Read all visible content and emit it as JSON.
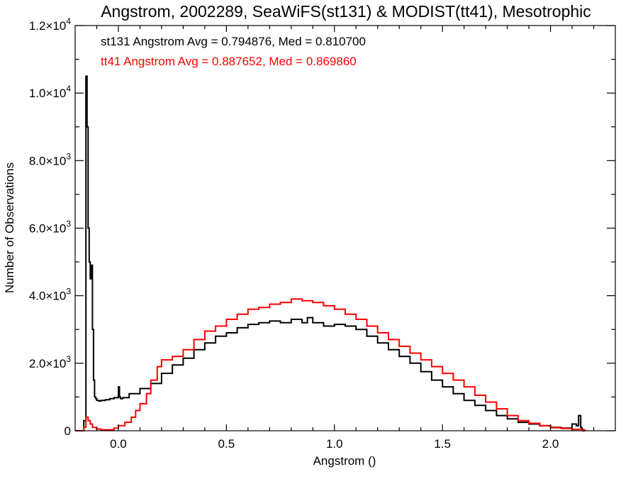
{
  "chart_data": {
    "type": "line",
    "title": "Angstrom, 2002289, SeaWiFS(st131) & MODIST(tt41), Mesotrophic",
    "xlabel": "Angstrom ()",
    "ylabel": "Number of Observations",
    "xlim": [
      -0.2,
      2.3
    ],
    "ylim": [
      0,
      12000
    ],
    "xticks": [
      0.0,
      0.5,
      1.0,
      1.5,
      2.0
    ],
    "xtick_labels": [
      "0.0",
      "0.5",
      "1.0",
      "1.5",
      "2.0"
    ],
    "yticks": [
      {
        "value": 0,
        "mantissa": "0",
        "exponent": ""
      },
      {
        "value": 2000,
        "mantissa": "2.0×10",
        "exponent": "3"
      },
      {
        "value": 4000,
        "mantissa": "4.0×10",
        "exponent": "3"
      },
      {
        "value": 6000,
        "mantissa": "6.0×10",
        "exponent": "3"
      },
      {
        "value": 8000,
        "mantissa": "8.0×10",
        "exponent": "3"
      },
      {
        "value": 10000,
        "mantissa": "1.0×10",
        "exponent": "4"
      },
      {
        "value": 12000,
        "mantissa": "1.2×10",
        "exponent": "4"
      }
    ],
    "grid": false,
    "stats": [
      {
        "text": "st131 Angstrom Avg = 0.794876, Med = 0.810700",
        "color": "#000000"
      },
      {
        "text": "tt41 Angstrom Avg = 0.887652, Med = 0.869860",
        "color": "#ff0000"
      }
    ],
    "series": [
      {
        "color": "#000000",
        "step": true,
        "x": [
          -0.2,
          -0.16,
          -0.15,
          -0.145,
          -0.14,
          -0.135,
          -0.13,
          -0.125,
          -0.12,
          -0.115,
          -0.11,
          -0.105,
          -0.1,
          -0.09,
          -0.08,
          -0.06,
          -0.04,
          -0.02,
          0.0,
          0.005,
          0.01,
          0.02,
          0.05,
          0.1,
          0.15,
          0.2,
          0.25,
          0.3,
          0.35,
          0.4,
          0.45,
          0.5,
          0.55,
          0.6,
          0.65,
          0.7,
          0.75,
          0.8,
          0.85,
          0.875,
          0.9,
          0.95,
          1.0,
          1.05,
          1.1,
          1.15,
          1.2,
          1.25,
          1.3,
          1.35,
          1.4,
          1.45,
          1.5,
          1.55,
          1.6,
          1.65,
          1.7,
          1.75,
          1.8,
          1.85,
          1.9,
          1.95,
          2.0,
          2.05,
          2.1,
          2.12,
          2.13,
          2.14,
          2.145,
          2.15,
          2.16
        ],
        "values": [
          0,
          300,
          10500,
          9000,
          6000,
          5000,
          4500,
          4900,
          3000,
          1500,
          1000,
          950,
          900,
          880,
          900,
          920,
          950,
          980,
          1300,
          1000,
          950,
          980,
          1100,
          1250,
          1400,
          1700,
          1950,
          2150,
          2400,
          2600,
          2800,
          2900,
          3050,
          3150,
          3200,
          3250,
          3200,
          3300,
          3200,
          3350,
          3200,
          3100,
          3150,
          3100,
          3000,
          2800,
          2600,
          2400,
          2200,
          2000,
          1750,
          1500,
          1300,
          1100,
          900,
          750,
          600,
          450,
          350,
          250,
          200,
          150,
          100,
          80,
          200,
          150,
          450,
          100,
          50,
          0,
          0
        ]
      },
      {
        "color": "#ff0000",
        "step": true,
        "x": [
          -0.2,
          -0.16,
          -0.15,
          -0.14,
          -0.13,
          -0.12,
          -0.1,
          -0.08,
          -0.05,
          -0.02,
          0.0,
          0.03,
          0.06,
          0.08,
          0.1,
          0.13,
          0.15,
          0.18,
          0.2,
          0.25,
          0.3,
          0.35,
          0.4,
          0.45,
          0.5,
          0.55,
          0.6,
          0.65,
          0.7,
          0.75,
          0.8,
          0.85,
          0.9,
          0.95,
          1.0,
          1.05,
          1.1,
          1.15,
          1.2,
          1.25,
          1.3,
          1.35,
          1.4,
          1.45,
          1.5,
          1.55,
          1.6,
          1.65,
          1.7,
          1.75,
          1.8,
          1.85,
          1.9,
          1.95,
          2.0,
          2.05,
          2.1,
          2.15,
          2.16
        ],
        "values": [
          0,
          100,
          400,
          300,
          200,
          100,
          50,
          30,
          30,
          80,
          150,
          250,
          400,
          600,
          800,
          1100,
          1500,
          1900,
          2100,
          2200,
          2400,
          2700,
          2950,
          3100,
          3300,
          3450,
          3600,
          3650,
          3750,
          3800,
          3900,
          3850,
          3800,
          3700,
          3600,
          3450,
          3300,
          3100,
          2900,
          2700,
          2500,
          2300,
          2100,
          1900,
          1700,
          1500,
          1300,
          1050,
          850,
          650,
          450,
          300,
          220,
          150,
          90,
          70,
          40,
          20,
          0
        ]
      }
    ]
  }
}
